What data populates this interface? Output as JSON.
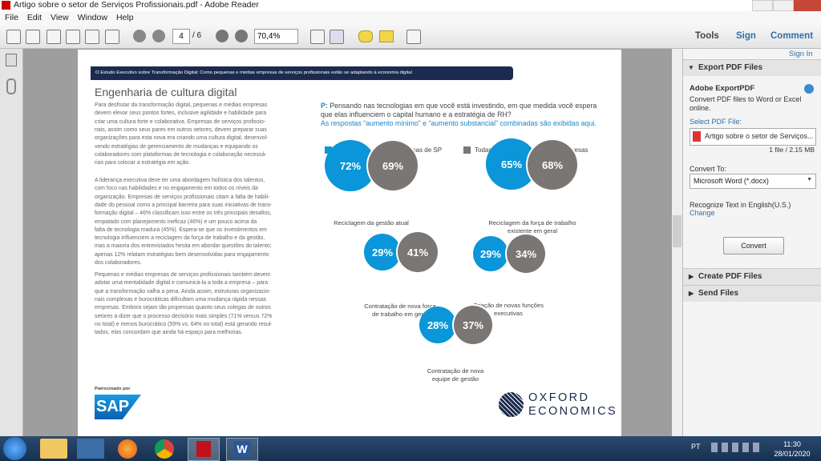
{
  "window": {
    "title": "Artigo sobre o setor de Serviços Profissionais.pdf - Adobe Reader"
  },
  "menu": [
    "File",
    "Edit",
    "View",
    "Window",
    "Help"
  ],
  "toolbar": {
    "page": "4",
    "pages": "/ 6",
    "zoom": "70,4%",
    "tabs": [
      "Tools",
      "Sign",
      "Comment"
    ]
  },
  "document": {
    "banner": "O Estudo Executivo sobre Transformação Digital: Como pequenas e médias empresas de serviços profissionais estão se adaptando à economia digital",
    "heading": "Engenharia de cultura digital",
    "paragraphs": [
      [
        "Para desfrutar da transformação digital, pequenas e médias empresas",
        "devem elevar seus pontos fortes, inclusive agilidade e habilidade para",
        "criar uma cultura forte e colaborativa. Empresas de serviços profissio-",
        "nais, assim como seus pares em outros setores, devem preparar suas",
        "organizações para esta nova era criando uma cultura digital, desenvol-",
        "vendo estratégias de gerenciamento de mudanças e equipando os",
        "colaboradores com plataformas de tecnologia e colaboração necessá-",
        "rias para colocar a estratégia em ação."
      ],
      [
        "A liderança executiva deve ter uma abordagem holística dos talentos,",
        "com foco nas habilidades e no engajamento em todos os níveis da",
        "organização. Empresas de serviços profissionais citam a falta de habili-",
        "dade do pessoal como a principal barreira para suas iniciativas de trans-",
        "formação digital – 46% classificam isso entre os três principais desafios,",
        "empatado com planejamento ineficaz (46%) e um pouco acima da",
        "falta de tecnologia madura (45%). Espera-se que os investimentos em",
        "tecnologia influenciem a reciclagem da força de trabalho e da gestão,",
        "mas a maioria dos entrevistados hesita em abordar questões do talento;",
        "apenas 12% relatam estratégias bem desenvolvidas para engajamento",
        "dos colaboradores."
      ],
      [
        "Pequenas e médias empresas de serviços profissionais também devem",
        "adotar uma mentalidade digital e comunicá-la a toda a empresa – para",
        "que a transformação valha a pena. Ainda assim, estruturas organizacio-",
        "nais complexas e burocráticas dificultam uma mudança rápida nessas",
        "empresas. Embora sejam tão propensas quanto seus colegas de outros",
        "setores a dizer que o processo decisório mais simples (71% versus 72%",
        "no total) e menos burocrático (59% vs. 64% no total) está gerando resul-",
        "tados, elas concordam que ainda há espaço para melhorias."
      ]
    ],
    "question_prefix": "P:",
    "question": [
      "Pensando nas tecnologias em que você está investindo, em que medida você espera",
      "que elas influenciem o capital humano e a estratégia de RH?"
    ],
    "note": "As respostas “aumento mínimo” e “aumento substancial” combinadas são exibidas aqui.",
    "legend": [
      "Pequenas e médias empresas de SP",
      "Todas as pequenas e médias empresas"
    ],
    "bubbles": [
      {
        "sp": "72%",
        "all": "69%",
        "label": [
          "Reciclagem da gestão atual"
        ]
      },
      {
        "sp": "65%",
        "all": "68%",
        "label": [
          "Reciclagem da força de trabalho",
          "existente em geral"
        ]
      },
      {
        "sp": "29%",
        "all": "41%",
        "label": [
          "Contratação de nova força",
          "de trabalho em geral"
        ]
      },
      {
        "sp": "29%",
        "all": "34%",
        "label": [
          "Criação de novas funções",
          "executivas"
        ]
      },
      {
        "sp": "28%",
        "all": "37%",
        "label": [
          "Contratação de nova",
          "equipe de gestão"
        ]
      }
    ],
    "sponsor": "Patrocinado por",
    "sap": "SAP",
    "oxford": [
      "OXFORD",
      "ECONOMICS"
    ]
  },
  "panel": {
    "sign_in": "Sign In",
    "export_header": "Export PDF Files",
    "export_title": "Adobe ExportPDF",
    "export_desc": [
      "Convert PDF files to Word or Excel",
      "online."
    ],
    "select_label": "Select PDF File:",
    "file": "Artigo sobre o setor de Serviços...",
    "file_info": "1 file / 2.15 MB",
    "convert_to": "Convert To:",
    "format": "Microsoft Word (*.docx)",
    "recognize": "Recognize Text in English(U.S.)",
    "change": "Change",
    "convert": "Convert",
    "create_header": "Create PDF Files",
    "send_header": "Send Files"
  },
  "taskbar": {
    "lang": "PT",
    "time": "11:30",
    "date": "28/01/2020",
    "word": "W"
  }
}
